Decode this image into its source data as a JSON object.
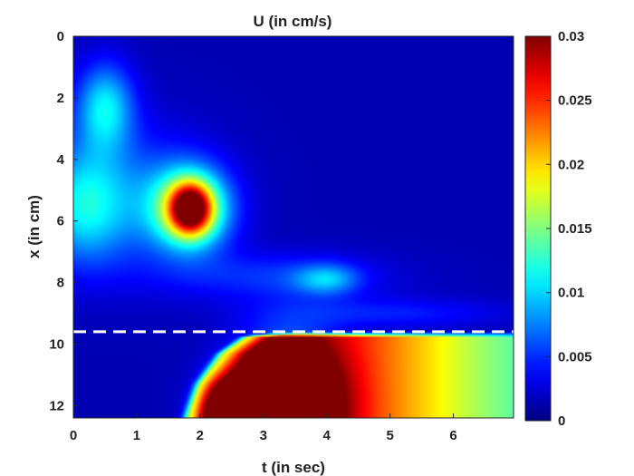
{
  "chart_data": {
    "type": "heatmap",
    "title": "U (in cm/s)",
    "xlabel": "t (in sec)",
    "ylabel": "x (in cm)",
    "xlim": [
      0,
      6.95
    ],
    "ylim": [
      0,
      12.4
    ],
    "y_reversed": true,
    "xticks": [
      0,
      1,
      2,
      3,
      4,
      5,
      6
    ],
    "yticks": [
      0,
      2,
      4,
      6,
      8,
      10,
      12
    ],
    "colormap": "jet",
    "colorbar": {
      "min": 0,
      "max": 0.03,
      "ticks": [
        "0",
        "0.005",
        "0.01",
        "0.015",
        "0.02",
        "0.025",
        "0.03"
      ],
      "tick_values": [
        0,
        0.005,
        0.01,
        0.015,
        0.02,
        0.025,
        0.03
      ]
    },
    "reference_line": {
      "y": 9.6,
      "color": "#ffffff",
      "style": "dashed"
    },
    "regions": [
      {
        "t": 0.5,
        "x": 2.3,
        "st": 0.32,
        "sx": 1.0,
        "value": 0.009
      },
      {
        "t": 0.15,
        "x": 5.5,
        "st": 0.45,
        "sx": 1.3,
        "value": 0.007
      },
      {
        "t": 0.9,
        "x": 5.3,
        "st": 0.9,
        "sx": 1.6,
        "value": 0.005
      },
      {
        "t": 1.85,
        "x": 5.6,
        "st": 0.42,
        "sx": 0.9,
        "value": 0.0155
      },
      {
        "t": 1.85,
        "x": 5.6,
        "st": 0.22,
        "sx": 0.55,
        "value": 0.02
      },
      {
        "t": 3.2,
        "x": 7.8,
        "st": 1.2,
        "sx": 0.55,
        "value": 0.0035
      },
      {
        "t": 4.0,
        "x": 7.9,
        "st": 0.35,
        "sx": 0.35,
        "value": 0.006
      },
      {
        "t": 5.0,
        "x": 9.0,
        "st": 1.3,
        "sx": 0.35,
        "value": 0.003
      },
      {
        "t": 2.3,
        "x": 12.2,
        "st": 0.25,
        "sx": 0.7,
        "value": 0.012
      },
      {
        "t": 3.4,
        "x": 12.0,
        "st": 0.6,
        "sx": 1.5,
        "value": 0.015
      }
    ],
    "lower_band": {
      "x_start": 9.6,
      "onset": [
        [
          1.85,
          12.4
        ],
        [
          2.05,
          11.3
        ],
        [
          2.4,
          10.3
        ],
        [
          2.8,
          9.75
        ],
        [
          3.5,
          9.6
        ]
      ],
      "peak_t": 3.5,
      "peak_value": 0.025,
      "decay_width": 2.9,
      "tail_value": 0.0085
    }
  }
}
